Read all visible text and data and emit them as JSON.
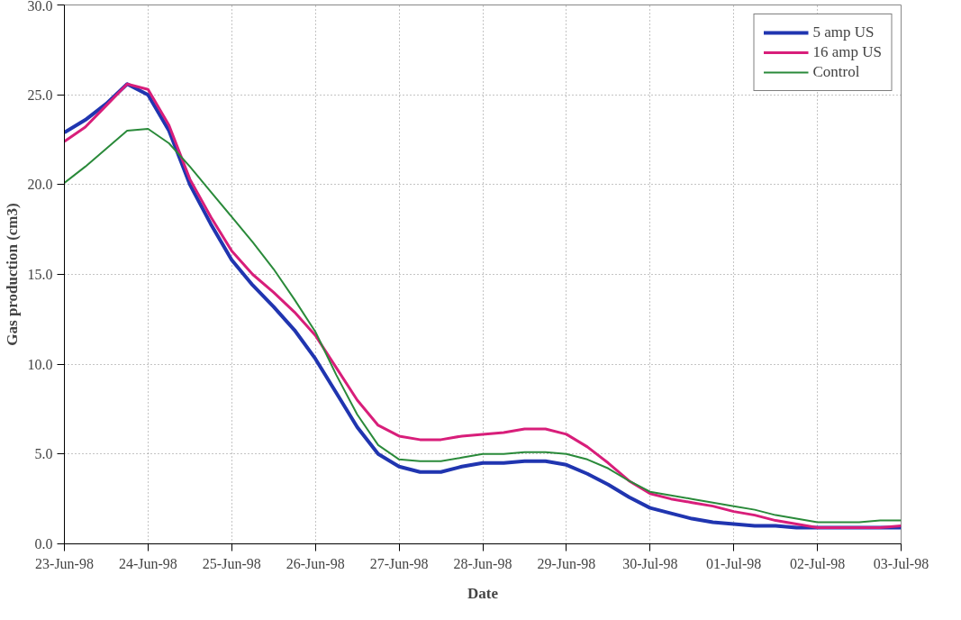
{
  "chart_data": {
    "type": "line",
    "xlabel": "Date",
    "ylabel": "Gas production (cm3)",
    "categories": [
      "23-Jun-98",
      null,
      null,
      null,
      "24-Jun-98",
      null,
      null,
      null,
      "25-Jun-98",
      null,
      null,
      null,
      "26-Jun-98",
      null,
      null,
      null,
      "27-Jun-98",
      null,
      null,
      null,
      "28-Jun-98",
      null,
      null,
      null,
      "29-Jun-98",
      null,
      null,
      null,
      "30-Jul-98",
      null,
      null,
      null,
      "01-Jul-98",
      null,
      null,
      null,
      "02-Jul-98",
      null,
      null,
      null,
      "03-Jul-98"
    ],
    "series": [
      {
        "name": "5 amp US",
        "color": "#2035b0",
        "values": [
          22.9,
          23.6,
          24.5,
          25.6,
          25.0,
          23.0,
          20.0,
          17.8,
          15.8,
          14.4,
          13.2,
          11.9,
          10.3,
          8.4,
          6.5,
          5.0,
          4.3,
          4.0,
          4.0,
          4.3,
          4.5,
          4.5,
          4.6,
          4.6,
          4.4,
          3.9,
          3.3,
          2.6,
          2.0,
          1.7,
          1.4,
          1.2,
          1.1,
          1.0,
          1.0,
          0.9,
          0.9,
          0.9,
          0.9,
          0.9,
          0.9
        ]
      },
      {
        "name": "16 amp US",
        "color": "#d81e7a",
        "values": [
          22.4,
          23.2,
          24.4,
          25.6,
          25.3,
          23.3,
          20.3,
          18.2,
          16.3,
          15.0,
          14.0,
          12.9,
          11.6,
          9.8,
          8.0,
          6.6,
          6.0,
          5.8,
          5.8,
          6.0,
          6.1,
          6.2,
          6.4,
          6.4,
          6.1,
          5.4,
          4.5,
          3.5,
          2.8,
          2.5,
          2.3,
          2.1,
          1.8,
          1.6,
          1.3,
          1.1,
          0.9,
          0.9,
          0.9,
          0.9,
          1.0
        ]
      },
      {
        "name": "Control",
        "color": "#2a8a3a",
        "values": [
          20.1,
          21.0,
          22.0,
          23.0,
          23.1,
          22.3,
          21.0,
          19.6,
          18.2,
          16.8,
          15.3,
          13.6,
          11.8,
          9.4,
          7.2,
          5.5,
          4.7,
          4.6,
          4.6,
          4.8,
          5.0,
          5.0,
          5.1,
          5.1,
          5.0,
          4.7,
          4.2,
          3.5,
          2.9,
          2.7,
          2.5,
          2.3,
          2.1,
          1.9,
          1.6,
          1.4,
          1.2,
          1.2,
          1.2,
          1.3,
          1.3
        ]
      }
    ],
    "ylim": [
      0,
      30
    ],
    "yticks": [
      {
        "value": 0,
        "label": "0.0"
      },
      {
        "value": 5,
        "label": "5.0"
      },
      {
        "value": 10,
        "label": "10.0"
      },
      {
        "value": 15,
        "label": "15.0"
      },
      {
        "value": 20,
        "label": "20.0"
      },
      {
        "value": 25,
        "label": "25.0"
      },
      {
        "value": 30,
        "label": "30.0"
      }
    ],
    "grid": true,
    "legend": "top right",
    "marker": "none",
    "line_style": "solid"
  }
}
